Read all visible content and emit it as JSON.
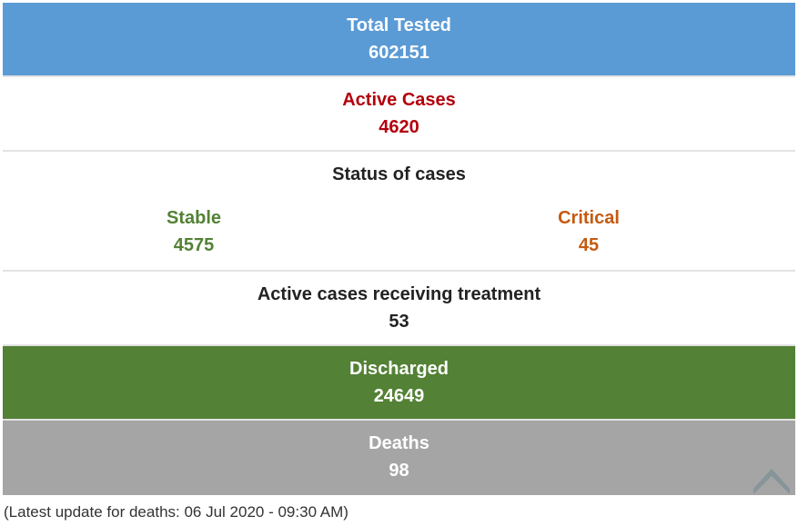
{
  "total_tested": {
    "label": "Total Tested",
    "value": "602151"
  },
  "active_cases": {
    "label": "Active Cases",
    "value": "4620"
  },
  "status": {
    "label": "Status of cases",
    "stable": {
      "label": "Stable",
      "value": "4575"
    },
    "critical": {
      "label": "Critical",
      "value": "45"
    }
  },
  "treatment": {
    "label": "Active cases receiving treatment",
    "value": "53"
  },
  "discharged": {
    "label": "Discharged",
    "value": "24649"
  },
  "deaths": {
    "label": "Deaths",
    "value": "98"
  },
  "footer": {
    "note": "(Latest update for deaths: 06 Jul 2020 - 09:30 AM)"
  },
  "icons": {
    "scroll_top": "chevron-up-icon"
  },
  "colors": {
    "tested_bg": "#5b9bd5",
    "active_text": "#b3000d",
    "stable_text": "#538135",
    "critical_text": "#c55a11",
    "discharged_bg": "#538135",
    "deaths_bg": "#a5a5a5"
  }
}
